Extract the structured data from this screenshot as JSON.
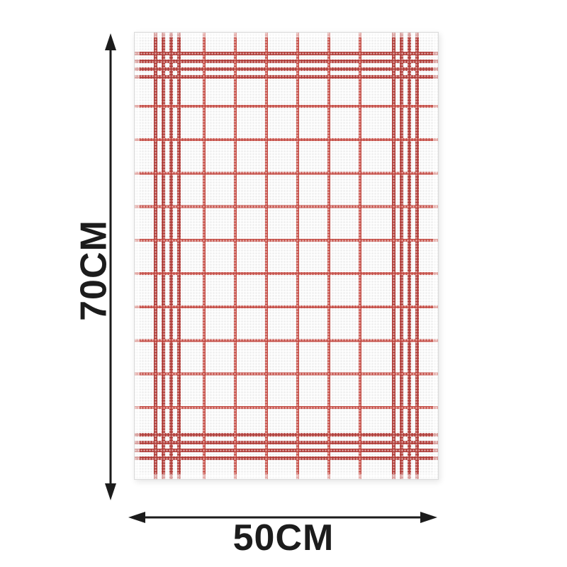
{
  "dimensions": {
    "height": {
      "label": "70CM"
    },
    "width": {
      "label": "50CM"
    }
  },
  "colors": {
    "towel-red": "#c43a31",
    "towel-red-dark": "#b23530",
    "arrow-black": "#1c1c1c",
    "page-bg": "#ffffff"
  }
}
